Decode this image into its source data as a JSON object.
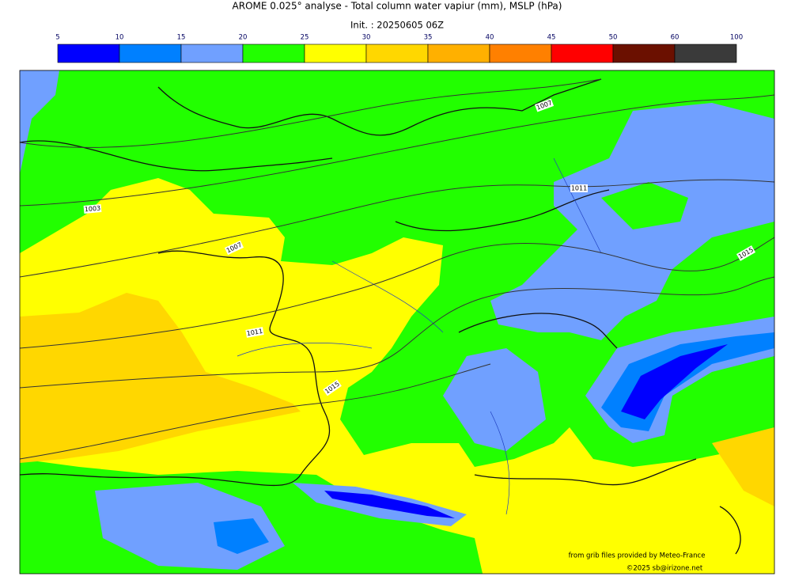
{
  "header": {
    "title": "AROME 0.025° analyse - Total column water vapiur (mm), MSLP (hPa)",
    "subtitle": "Init. : 20250605 06Z"
  },
  "colorbar": {
    "ticks": [
      5,
      10,
      15,
      20,
      25,
      30,
      35,
      40,
      45,
      50,
      60,
      100
    ],
    "colors": [
      "#0000ff",
      "#0080ff",
      "#70a0ff",
      "#22ff00",
      "#ffff00",
      "#ffd700",
      "#ffb000",
      "#ff8000",
      "#ff0000",
      "#6b1000",
      "#3a3a3a"
    ]
  },
  "map": {
    "isobar_labels": [
      "1007",
      "1011",
      "1003",
      "1007",
      "1011",
      "1015",
      "1015"
    ],
    "credits": [
      "from grib files provided by Meteo-France",
      "©2025 sb@irizone.net"
    ]
  }
}
